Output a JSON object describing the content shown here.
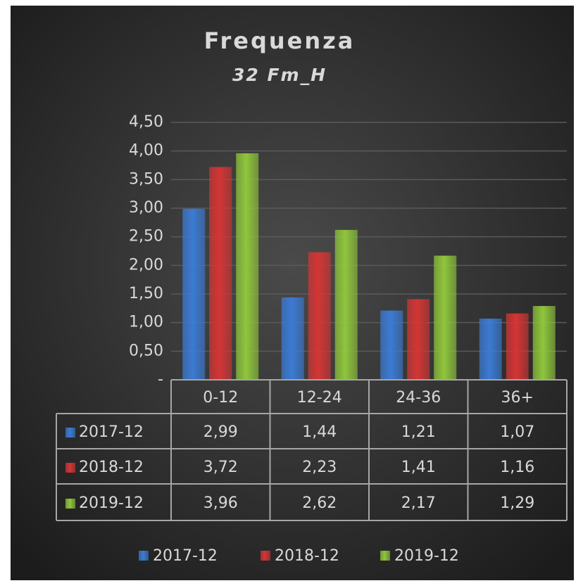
{
  "chart_data": {
    "type": "bar",
    "title": "Frequenza",
    "subtitle": "32 Fm_H",
    "categories": [
      "0-12",
      "12-24",
      "24-36",
      "36+"
    ],
    "series": [
      {
        "name": "2017-12",
        "color": "#3b7bd4",
        "values": [
          2.99,
          1.44,
          1.21,
          1.07
        ],
        "value_labels": [
          "2,99",
          "1,44",
          "1,21",
          "1,07"
        ]
      },
      {
        "name": "2018-12",
        "color": "#d43535",
        "values": [
          3.72,
          2.23,
          1.41,
          1.16
        ],
        "value_labels": [
          "3,72",
          "2,23",
          "1,41",
          "1,16"
        ]
      },
      {
        "name": "2019-12",
        "color": "#8fc63c",
        "values": [
          3.96,
          2.62,
          2.17,
          1.29
        ],
        "value_labels": [
          "3,96",
          "2,62",
          "2,17",
          "1,29"
        ]
      }
    ],
    "ylim": [
      0,
      4.5
    ],
    "yticks": [
      {
        "value": 0,
        "label": "-"
      },
      {
        "value": 0.5,
        "label": "0,50"
      },
      {
        "value": 1,
        "label": "1,00"
      },
      {
        "value": 1.5,
        "label": "1,50"
      },
      {
        "value": 2,
        "label": "2,00"
      },
      {
        "value": 2.5,
        "label": "2,50"
      },
      {
        "value": 3,
        "label": "3,00"
      },
      {
        "value": 3.5,
        "label": "3,50"
      },
      {
        "value": 4,
        "label": "4,00"
      },
      {
        "value": 4.5,
        "label": "4,50"
      }
    ],
    "grid": true,
    "legend": "bottom",
    "data_table": true
  }
}
